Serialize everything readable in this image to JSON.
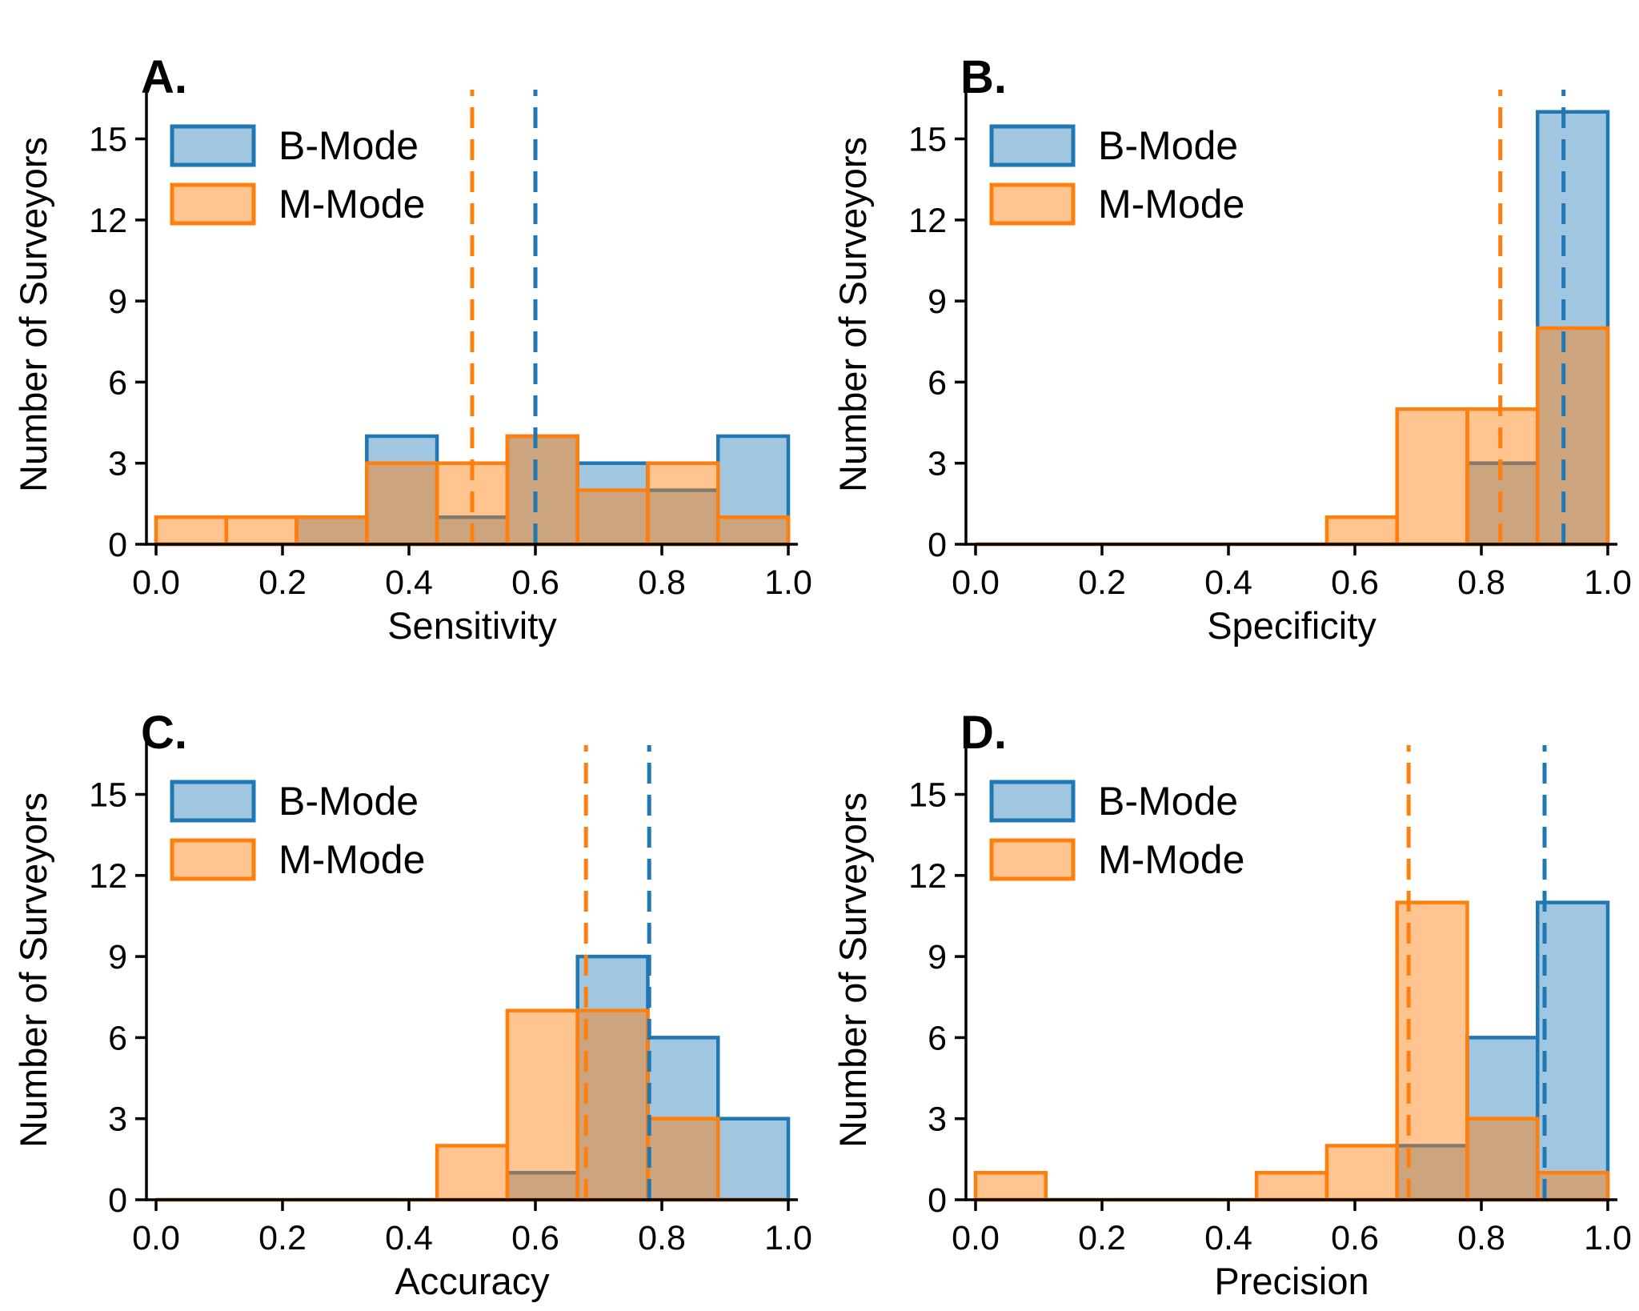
{
  "figure": {
    "background": "#ffffff",
    "n_panels": 4
  },
  "shared": {
    "colors": {
      "b_mode_edge": "#1f77b4",
      "m_mode_edge": "#ff7f0e",
      "b_mode_fill_opacity": 0.42,
      "m_mode_fill_opacity": 0.46,
      "axis": "#000000",
      "text": "#000000"
    },
    "legend": {
      "position": "upper left",
      "items": [
        {
          "label": "B-Mode",
          "edge_color": "#1f77b4"
        },
        {
          "label": "M-Mode",
          "edge_color": "#ff7f0e"
        }
      ]
    },
    "y_axis": {
      "label": "Number of Surveyors",
      "tick_values": [
        0,
        3,
        6,
        9,
        12,
        15
      ],
      "tick_labels": [
        "0",
        "3",
        "6",
        "9",
        "12",
        "15"
      ],
      "range": [
        0,
        17
      ]
    },
    "x_axis": {
      "tick_values": [
        0.0,
        0.2,
        0.4,
        0.6,
        0.8,
        1.0
      ],
      "tick_labels": [
        "0.0",
        "0.2",
        "0.4",
        "0.6",
        "0.8",
        "1.0"
      ],
      "range": [
        0,
        1
      ]
    },
    "bin_edges": [
      0.0,
      0.1111,
      0.2222,
      0.3333,
      0.4444,
      0.5556,
      0.6667,
      0.7778,
      0.8889,
      1.0
    ]
  },
  "chart_data": [
    {
      "panel_label": "A.",
      "type": "bar",
      "subtype": "overlaid-histogram",
      "xlabel": "Sensitivity",
      "ylabel": "Number of Surveyors",
      "ylim": [
        0,
        17
      ],
      "grid": false,
      "series": [
        {
          "name": "B-Mode",
          "values": [
            0,
            0,
            1,
            4,
            1,
            4,
            3,
            2,
            4
          ],
          "mean_line_x": 0.6
        },
        {
          "name": "M-Mode",
          "values": [
            1,
            1,
            1,
            3,
            3,
            4,
            2,
            3,
            1
          ],
          "mean_line_x": 0.5
        }
      ]
    },
    {
      "panel_label": "B.",
      "type": "bar",
      "subtype": "overlaid-histogram",
      "xlabel": "Specificity",
      "ylabel": "Number of Surveyors",
      "ylim": [
        0,
        17
      ],
      "grid": false,
      "series": [
        {
          "name": "B-Mode",
          "values": [
            0,
            0,
            0,
            0,
            0,
            0,
            0,
            3,
            16
          ],
          "mean_line_x": 0.93
        },
        {
          "name": "M-Mode",
          "values": [
            0,
            0,
            0,
            0,
            0,
            1,
            5,
            5,
            8
          ],
          "mean_line_x": 0.83
        }
      ]
    },
    {
      "panel_label": "C.",
      "type": "bar",
      "subtype": "overlaid-histogram",
      "xlabel": "Accuracy",
      "ylabel": "Number of Surveyors",
      "ylim": [
        0,
        17
      ],
      "grid": false,
      "series": [
        {
          "name": "B-Mode",
          "values": [
            0,
            0,
            0,
            0,
            0,
            1,
            9,
            6,
            3
          ],
          "mean_line_x": 0.78
        },
        {
          "name": "M-Mode",
          "values": [
            0,
            0,
            0,
            0,
            2,
            7,
            7,
            3,
            0
          ],
          "mean_line_x": 0.68
        }
      ]
    },
    {
      "panel_label": "D.",
      "type": "bar",
      "subtype": "overlaid-histogram",
      "xlabel": "Precision",
      "ylabel": "Number of Surveyors",
      "ylim": [
        0,
        17
      ],
      "grid": false,
      "series": [
        {
          "name": "B-Mode",
          "values": [
            0,
            0,
            0,
            0,
            0,
            0,
            2,
            6,
            11
          ],
          "mean_line_x": 0.9
        },
        {
          "name": "M-Mode",
          "values": [
            1,
            0,
            0,
            0,
            1,
            2,
            11,
            3,
            1
          ],
          "mean_line_x": 0.685
        }
      ]
    }
  ]
}
